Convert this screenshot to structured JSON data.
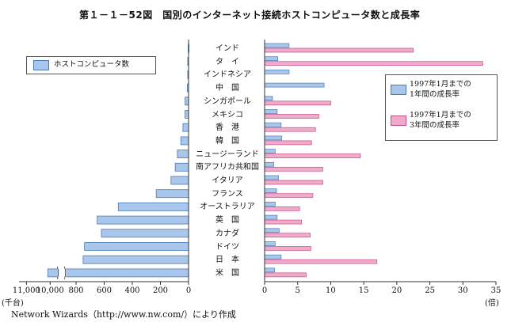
{
  "title": "第１－１－52図　国別のインターネット接続ホストコンピュータ数と成長率",
  "source": "Network Wizards（http://www.nw.com/）により作成",
  "chart_data": [
    {
      "type": "bar",
      "orientation": "horizontal",
      "direction": "right-to-left",
      "categories": [
        "インド",
        "タ　イ",
        "インドネシア",
        "中　国",
        "シンガポール",
        "メキシコ",
        "香　港",
        "韓　国",
        "ニュージーランド",
        "南アフリカ共和国",
        "イタリア",
        "フランス",
        "オーストラリア",
        "英　国",
        "カナダ",
        "ドイツ",
        "日　本",
        "米　国"
      ],
      "series": [
        {
          "name": "ホストコンピュータ数",
          "values": [
            2,
            6,
            6,
            9,
            25,
            25,
            40,
            55,
            80,
            95,
            125,
            230,
            500,
            650,
            620,
            740,
            750,
            10100
          ],
          "color": "#a9c7ea"
        }
      ],
      "xlabel": "(千台)",
      "ticks": [
        {
          "value": 11000,
          "label": "11,000"
        },
        {
          "value": 10000,
          "label": "10,000"
        },
        {
          "value": 800,
          "label": "800"
        },
        {
          "value": 600,
          "label": "600"
        },
        {
          "value": 400,
          "label": "400"
        },
        {
          "value": 200,
          "label": "200"
        },
        {
          "value": 0,
          "label": "0"
        }
      ],
      "axis_break": [
        900,
        9500
      ],
      "legend": "top-left",
      "grid": false
    },
    {
      "type": "bar",
      "orientation": "horizontal",
      "categories": [
        "インド",
        "タ　イ",
        "インドネシア",
        "中　国",
        "シンガポール",
        "メキシコ",
        "香　港",
        "韓　国",
        "ニュージーランド",
        "南アフリカ共和国",
        "イタリア",
        "フランス",
        "オーストラリア",
        "英　国",
        "カナダ",
        "ドイツ",
        "日　本",
        "米　国"
      ],
      "series": [
        {
          "name": "1997年1月までの\n1年間の成長率",
          "values": [
            3.7,
            2.0,
            3.7,
            9.0,
            1.2,
            1.9,
            2.5,
            2.6,
            1.6,
            1.4,
            2.1,
            1.8,
            1.6,
            1.9,
            2.2,
            1.6,
            2.5,
            1.5
          ],
          "color": "#a9c7ea"
        },
        {
          "name": "1997年1月までの\n3年間の成長率",
          "values": [
            22.5,
            33.0,
            0,
            0,
            10.0,
            8.2,
            7.7,
            7.1,
            14.5,
            8.8,
            8.8,
            7.3,
            5.3,
            5.6,
            6.9,
            7.0,
            17.0,
            6.3
          ],
          "color": "#f1aac9"
        }
      ],
      "xlabel": "(倍)",
      "xlim": [
        0,
        35
      ],
      "ticks": [
        0,
        5,
        10,
        15,
        20,
        25,
        30,
        35
      ],
      "legend": "right",
      "grid": false
    }
  ]
}
